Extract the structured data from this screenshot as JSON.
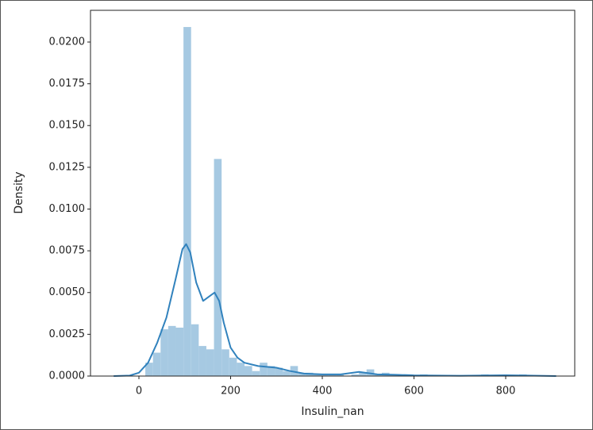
{
  "chart_data": {
    "type": "histogram",
    "xlabel": "Insulin_nan",
    "ylabel": "Density",
    "color": "#a6c9e2",
    "bins": [
      14,
      30.64,
      47.28,
      63.92,
      80.56,
      97.2,
      113.84,
      130.48,
      147.12,
      163.76,
      180.4,
      197.04,
      213.68,
      230.32,
      246.96,
      263.6,
      280.24,
      296.88,
      313.52,
      330.16,
      346.8,
      363.44,
      380.08,
      396.72,
      413.36,
      430,
      446.64,
      463.28,
      479.92,
      496.56,
      513.2,
      529.84,
      546.48,
      563.12,
      579.76,
      596.4,
      613.04,
      629.68,
      646.32,
      662.96,
      679.6,
      696.24,
      712.88,
      729.52,
      746.16,
      762.8,
      779.44,
      796.08,
      812.72,
      829.36,
      846
    ],
    "values": [
      0.0008,
      0.0014,
      0.0028,
      0.003,
      0.0029,
      0.0209,
      0.0031,
      0.0018,
      0.0016,
      0.013,
      0.0016,
      0.0011,
      0.0008,
      0.0006,
      0.0003,
      0.0008,
      0.0006,
      0.0005,
      0.0003,
      0.0006,
      0.0002,
      0.0002,
      0.0001,
      0.0001,
      0.0001,
      0.0001,
      0,
      0.0001,
      0.0002,
      0.0004,
      0.0001,
      0.0002,
      0.0001,
      0,
      0.0001,
      0,
      0.0001,
      0,
      0,
      0,
      0,
      0,
      0,
      0,
      0.0001,
      0,
      0,
      0,
      0,
      0.0001
    ],
    "kde": {
      "type": "line",
      "color": "#3182bd",
      "x": [
        -55,
        -20,
        0,
        20,
        40,
        60,
        80,
        95,
        103,
        112,
        125,
        140,
        155,
        165,
        175,
        185,
        200,
        215,
        230,
        260,
        300,
        330,
        360,
        400,
        440,
        480,
        520,
        560,
        600,
        700,
        800,
        850,
        910
      ],
      "values": [
        0,
        3e-05,
        0.0002,
        0.0008,
        0.002,
        0.0035,
        0.0058,
        0.0076,
        0.0079,
        0.0074,
        0.0056,
        0.0045,
        0.0048,
        0.005,
        0.0045,
        0.0032,
        0.0017,
        0.0011,
        0.0008,
        0.0006,
        0.0005,
        0.0003,
        0.00015,
        0.0001,
        0.0001,
        0.00025,
        0.0001,
        8e-05,
        4e-05,
        2e-05,
        5e-05,
        3e-05,
        0
      ]
    },
    "xlim": [
      -105.6,
      950.6
    ],
    "ylim": [
      0,
      0.0219
    ],
    "xticks": [
      0,
      200,
      400,
      600,
      800
    ],
    "yticks": [
      {
        "value": 0,
        "label": "0.0000"
      },
      {
        "value": 0.0025,
        "label": "0.0025"
      },
      {
        "value": 0.005,
        "label": "0.0050"
      },
      {
        "value": 0.0075,
        "label": "0.0075"
      },
      {
        "value": 0.01,
        "label": "0.0100"
      },
      {
        "value": 0.0125,
        "label": "0.0125"
      },
      {
        "value": 0.015,
        "label": "0.0150"
      },
      {
        "value": 0.0175,
        "label": "0.0175"
      },
      {
        "value": 0.02,
        "label": "0.0200"
      }
    ]
  }
}
